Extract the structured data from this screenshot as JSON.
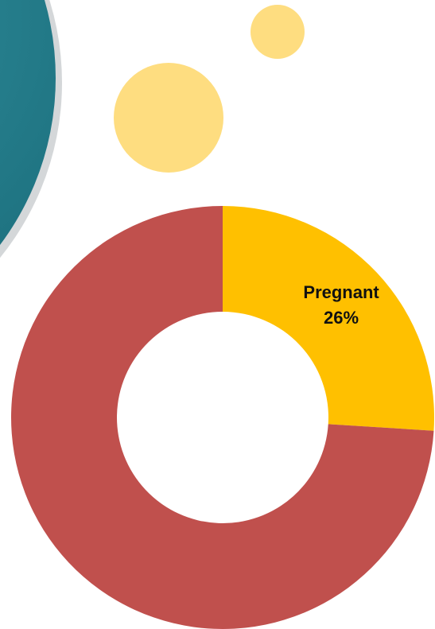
{
  "chart_data": {
    "type": "donut",
    "categories": [
      "Pregnant",
      null
    ],
    "values": [
      26,
      74
    ],
    "value_labels": [
      "26%",
      null
    ],
    "colors": [
      "#ffc000",
      "#c0504d"
    ]
  }
}
